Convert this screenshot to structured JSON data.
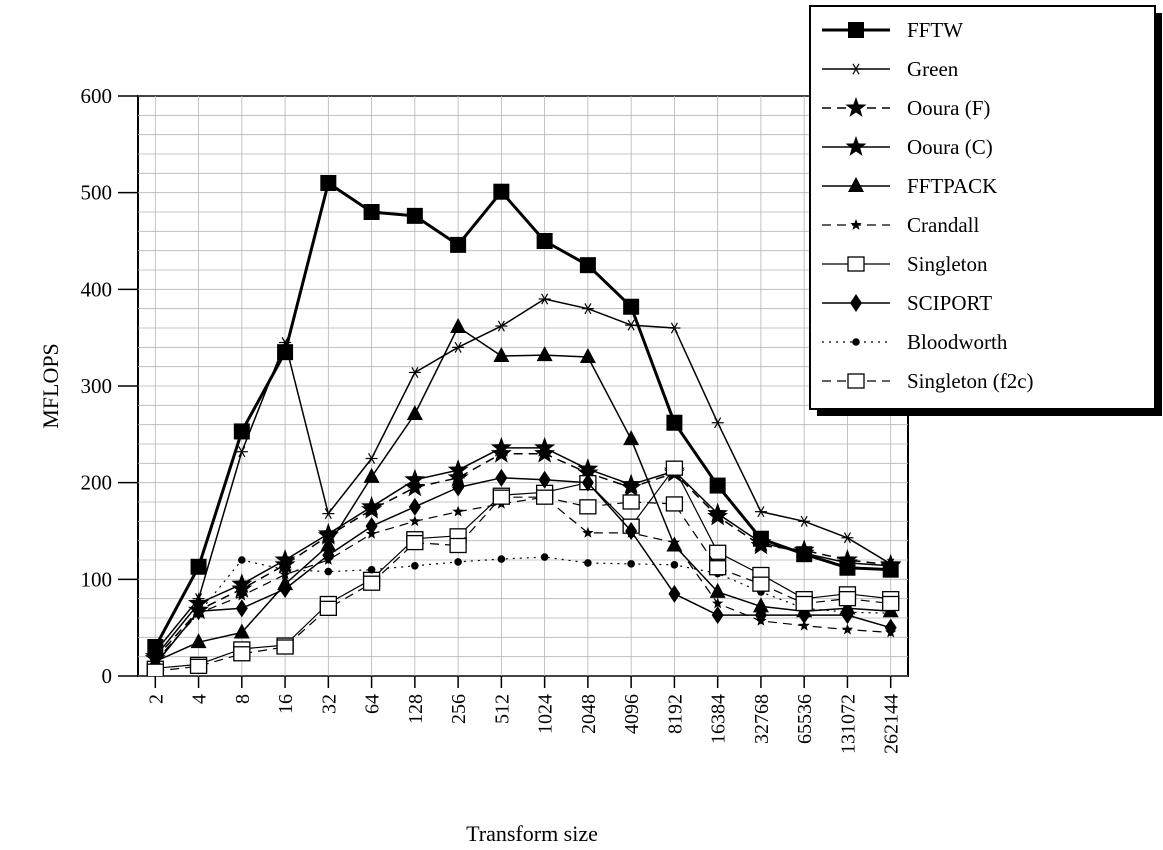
{
  "chart_data": {
    "type": "line",
    "xlabel": "Transform size",
    "ylabel": "MFLOPS",
    "categories": [
      "2",
      "4",
      "8",
      "16",
      "32",
      "64",
      "128",
      "256",
      "512",
      "1024",
      "2048",
      "4096",
      "8192",
      "16384",
      "32768",
      "65536",
      "131072",
      "262144"
    ],
    "ylim": [
      0,
      600
    ],
    "yticks": [
      0,
      100,
      200,
      300,
      400,
      500,
      600
    ],
    "grid": true,
    "legend_position": "top-right",
    "series": [
      {
        "name": "FFTW",
        "marker": "square-filled",
        "dash": "solid",
        "width": 3,
        "values": [
          30,
          113,
          253,
          335,
          510,
          480,
          476,
          446,
          501,
          450,
          425,
          382,
          262,
          197,
          142,
          126,
          112,
          110
        ]
      },
      {
        "name": "Green",
        "marker": "asterisk",
        "dash": "solid",
        "width": 1.5,
        "values": [
          25,
          80,
          232,
          345,
          168,
          225,
          314,
          340,
          362,
          390,
          380,
          363,
          360,
          262,
          170,
          160,
          143,
          116
        ]
      },
      {
        "name": "Ooura (F)",
        "marker": "star",
        "dash": "dashed",
        "width": 1.5,
        "values": [
          18,
          68,
          90,
          115,
          145,
          172,
          195,
          205,
          230,
          230,
          210,
          195,
          210,
          165,
          135,
          130,
          120,
          115
        ]
      },
      {
        "name": "Ooura (C)",
        "marker": "star",
        "dash": "solid",
        "width": 1.5,
        "values": [
          20,
          75,
          95,
          120,
          147,
          175,
          203,
          213,
          236,
          236,
          214,
          198,
          212,
          168,
          138,
          127,
          117,
          114
        ]
      },
      {
        "name": "FFTPACK",
        "marker": "triangle",
        "dash": "solid",
        "width": 1.5,
        "values": [
          15,
          35,
          45,
          95,
          135,
          206,
          271,
          361,
          331,
          332,
          330,
          245,
          135,
          87,
          72,
          67,
          70,
          67
        ]
      },
      {
        "name": "Crandall",
        "marker": "small-star",
        "dash": "dashed",
        "width": 1.2,
        "values": [
          15,
          65,
          83,
          105,
          120,
          147,
          160,
          170,
          178,
          185,
          148,
          148,
          138,
          75,
          57,
          52,
          48,
          45
        ]
      },
      {
        "name": "Singleton",
        "marker": "square-open",
        "dash": "solid",
        "width": 1.2,
        "values": [
          8,
          12,
          28,
          32,
          75,
          100,
          142,
          145,
          187,
          190,
          200,
          155,
          215,
          128,
          105,
          80,
          85,
          80
        ]
      },
      {
        "name": "SCIPORT",
        "marker": "diamond",
        "dash": "solid",
        "width": 1.5,
        "values": [
          12,
          67,
          70,
          90,
          125,
          155,
          175,
          195,
          205,
          203,
          200,
          150,
          85,
          63,
          63,
          63,
          63,
          50
        ]
      },
      {
        "name": "Bloodworth",
        "marker": "dot",
        "dash": "dotted",
        "width": 1.2,
        "values": [
          15,
          65,
          120,
          110,
          108,
          110,
          114,
          118,
          121,
          123,
          117,
          116,
          115,
          106,
          87,
          70,
          66,
          65
        ]
      },
      {
        "name": "Singleton (f2c)",
        "marker": "square-open",
        "dash": "dashed",
        "width": 1.2,
        "values": [
          5,
          10,
          23,
          30,
          70,
          96,
          138,
          135,
          185,
          185,
          175,
          180,
          178,
          112,
          95,
          75,
          80,
          75
        ]
      }
    ]
  }
}
